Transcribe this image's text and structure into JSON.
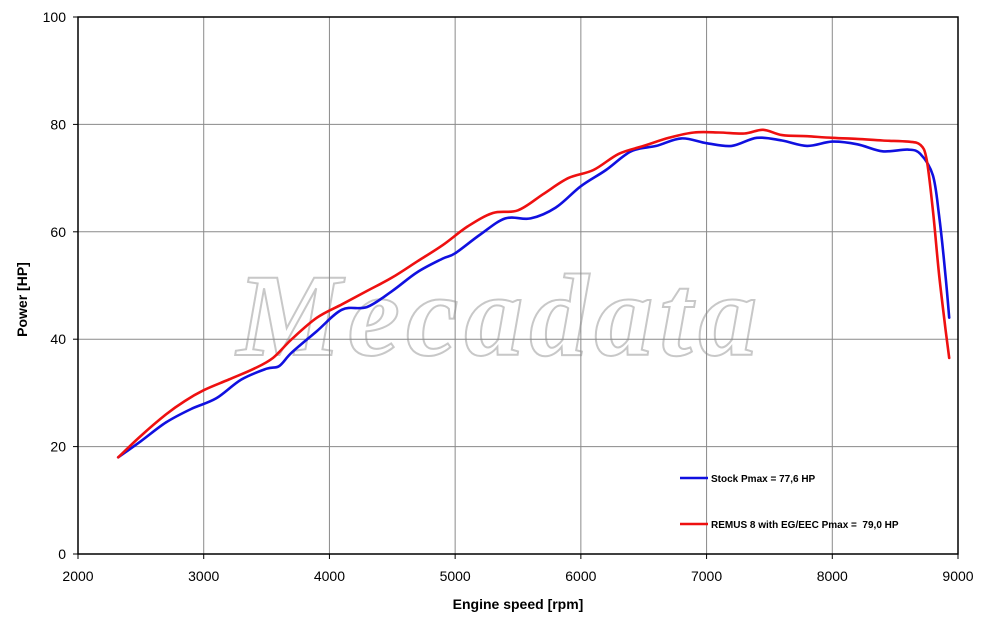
{
  "watermark": "Mecadata",
  "chart_data": {
    "type": "line",
    "xlabel": "Engine speed [rpm]",
    "ylabel": "Power [HP]",
    "xlim": [
      2000,
      9000
    ],
    "ylim": [
      0,
      100
    ],
    "xticks": [
      2000,
      3000,
      4000,
      5000,
      6000,
      7000,
      8000,
      9000
    ],
    "yticks": [
      0,
      20,
      40,
      60,
      80,
      100
    ],
    "grid": true,
    "legend_position": "bottom-right",
    "series": [
      {
        "name": "Stock Pmax = 77,6 HP",
        "color": "#1010e0",
        "x": [
          2320,
          2500,
          2700,
          2900,
          3100,
          3300,
          3500,
          3600,
          3700,
          3900,
          4100,
          4300,
          4500,
          4700,
          4900,
          5000,
          5200,
          5400,
          5600,
          5800,
          6000,
          6200,
          6400,
          6600,
          6800,
          7000,
          7200,
          7400,
          7600,
          7800,
          8000,
          8200,
          8400,
          8600,
          8700,
          8800,
          8850,
          8900,
          8930
        ],
        "values": [
          18,
          21,
          24.5,
          27,
          29,
          32.5,
          34.5,
          35,
          37.5,
          41.5,
          45.5,
          46,
          49,
          52.5,
          55,
          56,
          59.5,
          62.5,
          62.5,
          64.5,
          68.5,
          71.5,
          75,
          76,
          77.4,
          76.5,
          76,
          77.5,
          77,
          76,
          76.8,
          76.3,
          75,
          75.3,
          74.5,
          70.5,
          63,
          52,
          44
        ]
      },
      {
        "name": "REMUS 8 with EG/EEC Pmax =  79,0 HP",
        "color": "#ee1010",
        "x": [
          2320,
          2500,
          2700,
          2850,
          3000,
          3200,
          3400,
          3550,
          3700,
          3900,
          4100,
          4300,
          4500,
          4700,
          4900,
          5100,
          5300,
          5500,
          5700,
          5900,
          6100,
          6300,
          6500,
          6700,
          6900,
          7100,
          7300,
          7450,
          7600,
          7800,
          8000,
          8200,
          8400,
          8600,
          8700,
          8750,
          8800,
          8850,
          8900,
          8930
        ],
        "values": [
          18,
          22,
          26,
          28.5,
          30.5,
          32.5,
          34.5,
          36.5,
          40,
          44,
          46.5,
          49,
          51.5,
          54.5,
          57.5,
          61,
          63.5,
          64,
          67,
          70,
          71.5,
          74.5,
          76,
          77.5,
          78.5,
          78.5,
          78.3,
          79,
          78,
          77.8,
          77.5,
          77.3,
          77,
          76.8,
          76.2,
          73.5,
          64,
          52,
          42,
          36.5
        ]
      }
    ]
  }
}
